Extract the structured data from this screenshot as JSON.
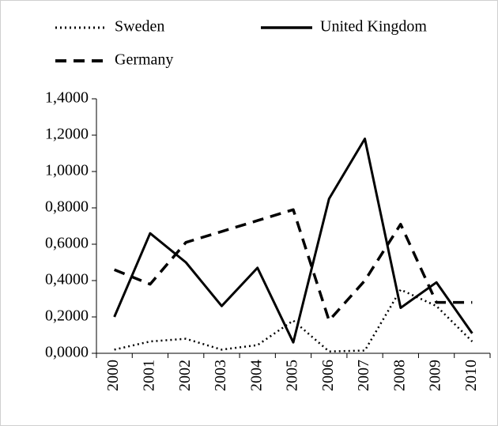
{
  "chart_data": {
    "type": "line",
    "categories": [
      "2000",
      "2001",
      "2002",
      "2003",
      "2004",
      "2005",
      "2006",
      "2007",
      "2008",
      "2009",
      "2010"
    ],
    "series": [
      {
        "name": "Sweden",
        "color": "#000000",
        "dash": "dotted",
        "values": [
          0.02,
          0.065,
          0.08,
          0.02,
          0.045,
          0.18,
          0.01,
          0.015,
          0.35,
          0.26,
          0.065
        ]
      },
      {
        "name": "United Kingdom",
        "color": "#000000",
        "dash": "solid",
        "values": [
          0.2,
          0.66,
          0.5,
          0.26,
          0.47,
          0.06,
          0.85,
          1.18,
          0.25,
          0.39,
          0.11
        ]
      },
      {
        "name": "Germany",
        "color": "#000000",
        "dash": "dashed",
        "values": [
          0.46,
          0.38,
          0.61,
          0.67,
          0.73,
          0.79,
          0.18,
          0.4,
          0.71,
          0.28,
          0.28
        ]
      }
    ],
    "ylim": [
      0,
      1.4
    ],
    "yticks": [
      {
        "value": 0,
        "label": "0,0000"
      },
      {
        "value": 0.2,
        "label": "0,2000"
      },
      {
        "value": 0.4,
        "label": "0,4000"
      },
      {
        "value": 0.6,
        "label": "0,6000"
      },
      {
        "value": 0.8,
        "label": "0,8000"
      },
      {
        "value": 1,
        "label": "1,0000"
      },
      {
        "value": 1.2,
        "label": "1,2000"
      },
      {
        "value": 1.4,
        "label": "1,4000"
      }
    ],
    "grid": false
  }
}
